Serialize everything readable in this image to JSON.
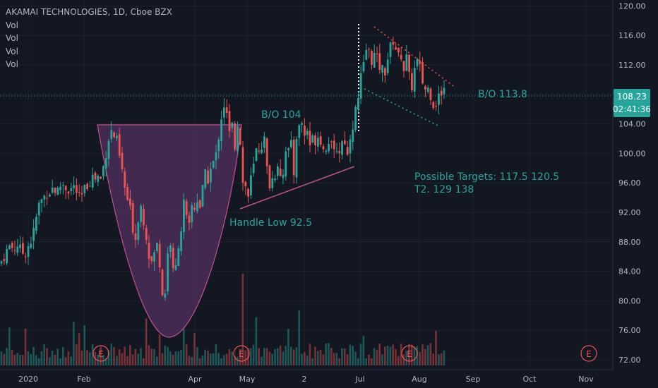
{
  "header": {
    "title": "AKAMAI TECHNOLOGIES, 1D, Cboe BZX",
    "indicators": [
      "Vol",
      "Vol",
      "Vol",
      "Vol"
    ]
  },
  "price_badge": {
    "price": "108.23",
    "countdown": "02:41:36"
  },
  "annotations": {
    "bo_104": "B/O 104",
    "bo_113": "B/O  113.8",
    "handle_low": "Handle Low  92.5",
    "targets_1": "Possible Targets: 117.5   120.5",
    "targets_2": "T2.  129  138"
  },
  "earnings_marker": "E",
  "colors": {
    "background": "#131722",
    "up": "#26a69a",
    "down": "#ef5350",
    "cup_fill": "#4a2d57",
    "cup_stroke": "#c2518a",
    "grid": "#1e222d",
    "text": "#b2b5be",
    "badge": "#26a69a"
  },
  "chart_data": {
    "type": "candlestick",
    "title": "AKAMAI TECHNOLOGIES, 1D, Cboe BZX",
    "y_ticks": [
      "120.00",
      "116.00",
      "112.00",
      "108.00",
      "104.00",
      "100.00",
      "96.00",
      "92.00",
      "88.00",
      "84.00",
      "80.00",
      "76.00",
      "72.00"
    ],
    "ylim": [
      71.5,
      121.5
    ],
    "x_ticks": [
      "2020",
      "Feb",
      "Apr",
      "May",
      "2",
      "Jul",
      "Aug",
      "Sep",
      "Oct",
      "Nov"
    ],
    "current_price": 108.23,
    "breakout_level": 108.23,
    "levels": {
      "handle_low": 92.5,
      "breakout_1": 104,
      "breakout_2": 113.8
    },
    "targets": [
      117.5,
      120.5,
      129,
      138
    ],
    "price_keypoints": [
      [
        0,
        85.0
      ],
      [
        8,
        86.5
      ],
      [
        14,
        87.5
      ],
      [
        20,
        87.0
      ],
      [
        26,
        87.8
      ],
      [
        30,
        86.5
      ],
      [
        36,
        86.6
      ],
      [
        40,
        87.5
      ],
      [
        46,
        88.5
      ],
      [
        50,
        90.5
      ],
      [
        54,
        92.8
      ],
      [
        58,
        93.5
      ],
      [
        62,
        94.0
      ],
      [
        66,
        94.6
      ],
      [
        70,
        94.8
      ],
      [
        76,
        95.5
      ],
      [
        80,
        94.5
      ],
      [
        86,
        95.7
      ],
      [
        90,
        95.8
      ],
      [
        96,
        95.0
      ],
      [
        100,
        95.2
      ],
      [
        106,
        95.5
      ],
      [
        110,
        94.3
      ],
      [
        114,
        93.6
      ],
      [
        118,
        94.8
      ],
      [
        122,
        95.5
      ],
      [
        126,
        96.0
      ],
      [
        130,
        97.0
      ],
      [
        134,
        96.5
      ],
      [
        138,
        97.0
      ],
      [
        142,
        96.3
      ],
      [
        146,
        98.0
      ],
      [
        150,
        100.0
      ],
      [
        154,
        102.0
      ],
      [
        158,
        103.0
      ],
      [
        162,
        102.3
      ],
      [
        166,
        101.5
      ],
      [
        170,
        99.0
      ],
      [
        174,
        97.0
      ],
      [
        178,
        94.5
      ],
      [
        184,
        92.5
      ],
      [
        188,
        90.0
      ],
      [
        192,
        88.5
      ],
      [
        196,
        91.5
      ],
      [
        200,
        93.0
      ],
      [
        204,
        90.5
      ],
      [
        208,
        88.5
      ],
      [
        212,
        85.5
      ],
      [
        216,
        85.2
      ],
      [
        220,
        87.0
      ],
      [
        224,
        88.0
      ],
      [
        228,
        83.0
      ],
      [
        232,
        79.0
      ],
      [
        236,
        84.0
      ],
      [
        240,
        90.0
      ],
      [
        244,
        84.0
      ],
      [
        248,
        83.5
      ],
      [
        252,
        87.5
      ],
      [
        256,
        89.0
      ],
      [
        260,
        93.5
      ],
      [
        264,
        91.0
      ],
      [
        268,
        90.0
      ],
      [
        272,
        93.0
      ],
      [
        276,
        92.5
      ],
      [
        280,
        94.0
      ],
      [
        284,
        92.5
      ],
      [
        288,
        96.0
      ],
      [
        292,
        97.5
      ],
      [
        296,
        96.0
      ],
      [
        300,
        99.0
      ],
      [
        304,
        98.5
      ],
      [
        308,
        101.0
      ],
      [
        312,
        104.0
      ],
      [
        316,
        106.5
      ],
      [
        320,
        106.5
      ],
      [
        324,
        102.0
      ],
      [
        328,
        104.5
      ],
      [
        332,
        100.5
      ],
      [
        336,
        104.5
      ],
      [
        340,
        102.0
      ],
      [
        344,
        96.0
      ],
      [
        348,
        95.5
      ],
      [
        352,
        94.0
      ],
      [
        356,
        97.0
      ],
      [
        360,
        98.5
      ],
      [
        364,
        101.0
      ],
      [
        368,
        100.5
      ],
      [
        372,
        101.5
      ],
      [
        376,
        102.0
      ],
      [
        380,
        94.5
      ],
      [
        384,
        97.0
      ],
      [
        388,
        96.0
      ],
      [
        392,
        99.0
      ],
      [
        396,
        98.0
      ],
      [
        400,
        96.0
      ],
      [
        404,
        101.0
      ],
      [
        408,
        100.0
      ],
      [
        412,
        101.5
      ],
      [
        416,
        97.0
      ],
      [
        420,
        102.5
      ],
      [
        424,
        103.5
      ],
      [
        428,
        104.3
      ],
      [
        432,
        102.0
      ],
      [
        436,
        103.5
      ],
      [
        440,
        100.5
      ],
      [
        444,
        102.5
      ],
      [
        448,
        101.5
      ],
      [
        452,
        103.0
      ],
      [
        456,
        101.0
      ],
      [
        460,
        100.0
      ],
      [
        464,
        102.0
      ],
      [
        468,
        101.5
      ],
      [
        472,
        99.5
      ],
      [
        476,
        101.0
      ],
      [
        480,
        100.0
      ],
      [
        484,
        101.5
      ],
      [
        488,
        102.0
      ],
      [
        492,
        99.5
      ],
      [
        496,
        102.5
      ],
      [
        500,
        104.0
      ],
      [
        504,
        106.0
      ],
      [
        508,
        107.5
      ],
      [
        512,
        111.0
      ],
      [
        516,
        112.0
      ],
      [
        520,
        115.0
      ],
      [
        524,
        113.0
      ],
      [
        528,
        112.5
      ],
      [
        532,
        114.0
      ],
      [
        536,
        111.5
      ],
      [
        540,
        112.0
      ],
      [
        544,
        110.5
      ],
      [
        548,
        112.5
      ],
      [
        552,
        114.0
      ],
      [
        556,
        115.5
      ],
      [
        560,
        114.5
      ],
      [
        564,
        113.0
      ],
      [
        568,
        113.5
      ],
      [
        572,
        111.5
      ],
      [
        576,
        113.0
      ],
      [
        580,
        110.0
      ],
      [
        584,
        109.0
      ],
      [
        588,
        112.0
      ],
      [
        592,
        112.5
      ],
      [
        596,
        111.0
      ],
      [
        600,
        109.0
      ],
      [
        604,
        108.5
      ],
      [
        608,
        109.0
      ],
      [
        612,
        107.0
      ],
      [
        616,
        106.5
      ],
      [
        620,
        107.5
      ],
      [
        624,
        108.0
      ],
      [
        628,
        109.0
      ],
      [
        632,
        108.2
      ]
    ]
  }
}
